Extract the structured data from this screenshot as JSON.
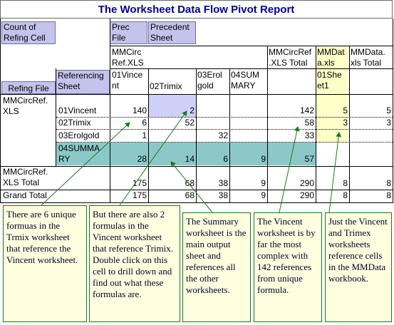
{
  "title": "The Worksheet Data Flow Pivot Report",
  "pivot": {
    "count_label": "Count of Refing Cell",
    "prec_file_label": "Prec File",
    "precedent_sheet_label": "Precedent Sheet",
    "refing_file_label": "Refing File",
    "referencing_sheet_label": "Referencing Sheet",
    "col_file_mmcirc": "MMCirc Ref.XLS",
    "col_mmcirc_total": "MMCircRef .XLS Total",
    "col_file_mmdata": "MMDat a.xls",
    "col_mmdata_total": "MMData. xls Total",
    "col_01vincent": "01Vince nt",
    "col_02trimix": "02Trimix",
    "col_03erolgold": "03Erol gold",
    "col_04summary": "04SUM MARY",
    "col_01sheet1": "01She et1",
    "row_file": "MMCircRef. XLS",
    "rows": [
      {
        "sheet": "01Vincent",
        "v01": "140",
        "v02": "2",
        "v03": "",
        "v04": "",
        "total": "142",
        "sheet1": "5",
        "mmtotal": "5"
      },
      {
        "sheet": "02Trimix",
        "v01": "6",
        "v02": "52",
        "v03": "",
        "v04": "",
        "total": "58",
        "sheet1": "3",
        "mmtotal": "3"
      },
      {
        "sheet": "03Erolgold",
        "v01": "1",
        "v02": "",
        "v03": "32",
        "v04": "",
        "total": "33",
        "sheet1": "",
        "mmtotal": ""
      },
      {
        "sheet": "04SUMMA RY",
        "v01": "28",
        "v02": "14",
        "v03": "6",
        "v04": "9",
        "total": "57",
        "sheet1": "",
        "mmtotal": ""
      }
    ],
    "file_total_label": "MMCircRef. XLS Total",
    "file_total": {
      "v01": "175",
      "v02": "68",
      "v03": "38",
      "v04": "9",
      "total": "290",
      "sheet1": "8",
      "mmtotal": "8"
    },
    "grand_total_label": "Grand Total",
    "grand_total": {
      "v01": "175",
      "v02": "68",
      "v03": "38",
      "v04": "9",
      "total": "290",
      "sheet1": "8",
      "mmtotal": "8"
    }
  },
  "notes": {
    "n1": "There are 6 unique formuas in the Trmix worksheet that reference the Vincent worksheet.",
    "n2": "But there are also 2 formulas in the Vincent worksheet that reference Trimix. Double click on this cell to drill down and find out what these formulas are.",
    "n3": "The Summary worksheet is the main output sheet and references all the other worksheets.",
    "n4": "The Vincent worksheet is by far the most complex with 142 references from unique formula.",
    "n5": "Just the Vincent and Trimex worksheets reference cells in the MMData workbook."
  },
  "colors": {
    "title": "#00008b",
    "field_button": "#c3c3ec",
    "summary_row": "#8cc8c8",
    "mmdata_col": "#ffffc8",
    "note_border": "#1a7a1a",
    "arrow": "#1a7a1a"
  }
}
